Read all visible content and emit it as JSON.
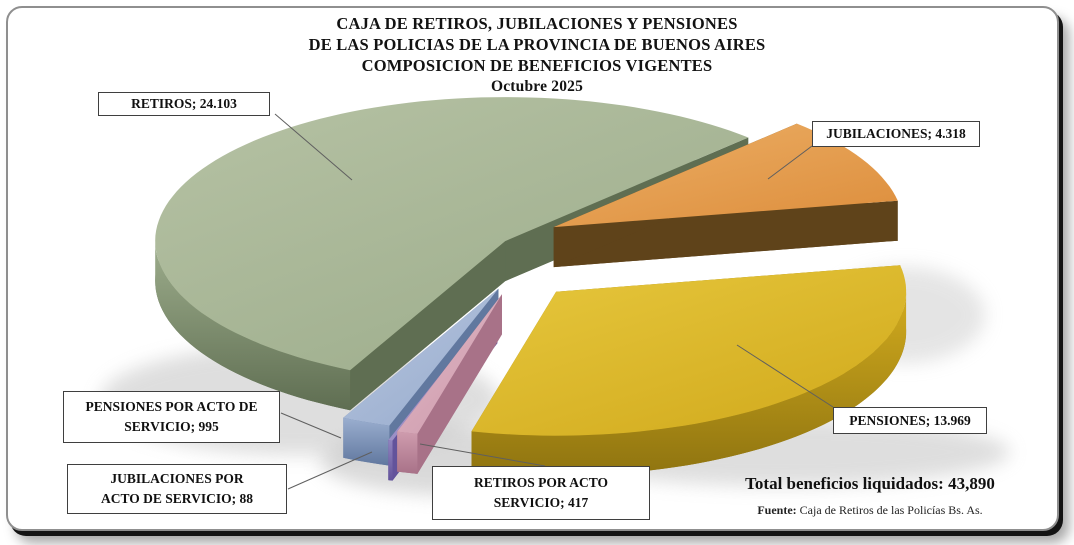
{
  "title": {
    "line1": "CAJA DE RETIROS, JUBILACIONES Y PENSIONES",
    "line2": "DE LAS POLICIAS DE LA PROVINCIA DE BUENOS AIRES",
    "line3": "COMPOSICION DE BENEFICIOS VIGENTES",
    "subtitle": "Octubre 2025"
  },
  "chart_data": {
    "type": "pie",
    "is_3d": true,
    "exploded": true,
    "title": "CAJA DE RETIROS, JUBILACIONES Y PENSIONES DE LAS POLICIAS DE LA PROVINCIA DE BUENOS AIRES - COMPOSICION DE BENEFICIOS VIGENTES - Octubre 2025",
    "total": 43890,
    "start_angle_deg": 46,
    "direction": "ccw",
    "legend_position": "callout-labels",
    "slices": [
      {
        "id": "retiros",
        "label": "RETIROS",
        "value": 24103,
        "display": "RETIROS; 24.103",
        "color": "#9DAD8C",
        "light": "#B6C2A4",
        "dark": "#5F6E52"
      },
      {
        "id": "pensiones-acto",
        "label": "PENSIONES POR ACTO DE SERVICIO",
        "value": 995,
        "display": "PENSIONES POR ACTO DE SERVICIO;  995",
        "color": "#9AAECF",
        "light": "#B7C5DE",
        "dark": "#61789F"
      },
      {
        "id": "jubilaciones-acto",
        "label": "JUBILACIONES POR ACTO DE SERVICIO",
        "value": 88,
        "display": "JUBILACIONES POR ACTO DE SERVICIO;  88",
        "color": "#9083BE",
        "light": "#B0A5D3",
        "dark": "#63539B"
      },
      {
        "id": "retiros-acto",
        "label": "RETIROS POR ACTO SERVICIO",
        "value": 417,
        "display": "RETIROS POR ACTO SERVICIO; 417",
        "color": "#CF9CAE",
        "light": "#E0B8C5",
        "dark": "#A87288"
      },
      {
        "id": "pensiones",
        "label": "PENSIONES",
        "value": 13969,
        "display": "PENSIONES; 13.969",
        "color": "#D2AB1E",
        "light": "#E7C83E",
        "dark": "#8F7410"
      },
      {
        "id": "jubilaciones",
        "label": "JUBILACIONES",
        "value": 4318,
        "display": "JUBILACIONES; 4.318",
        "color": "#DE903F",
        "light": "#ECAF66",
        "dark": "#5F431A"
      }
    ]
  },
  "footer": {
    "total_text": "Total beneficios liquidados: 43,890",
    "source_label": "Fuente:",
    "source_text": " Caja de Retiros de las Policías Bs. As."
  }
}
